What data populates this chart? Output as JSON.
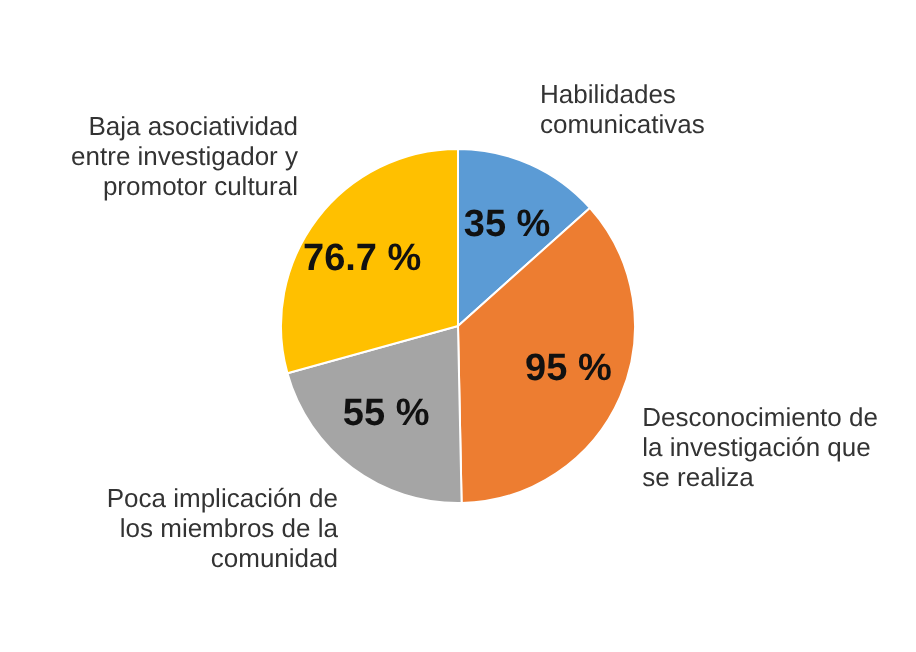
{
  "chart_data": {
    "type": "pie",
    "categories": [
      "Habilidades comunicativas",
      "Desconocimiento de la investigación que se realiza",
      "Poca implicación de los miembros de la comunidad",
      "Baja asociatividad entre investigador y promotor cultural"
    ],
    "values": [
      35,
      95,
      55,
      76.7
    ],
    "colors": [
      "#5b9bd5",
      "#ed7d31",
      "#a5a5a5",
      "#ffc000"
    ],
    "value_labels": [
      "35 %",
      "95 %",
      "55 %",
      "76.7 %"
    ],
    "legend": false
  }
}
